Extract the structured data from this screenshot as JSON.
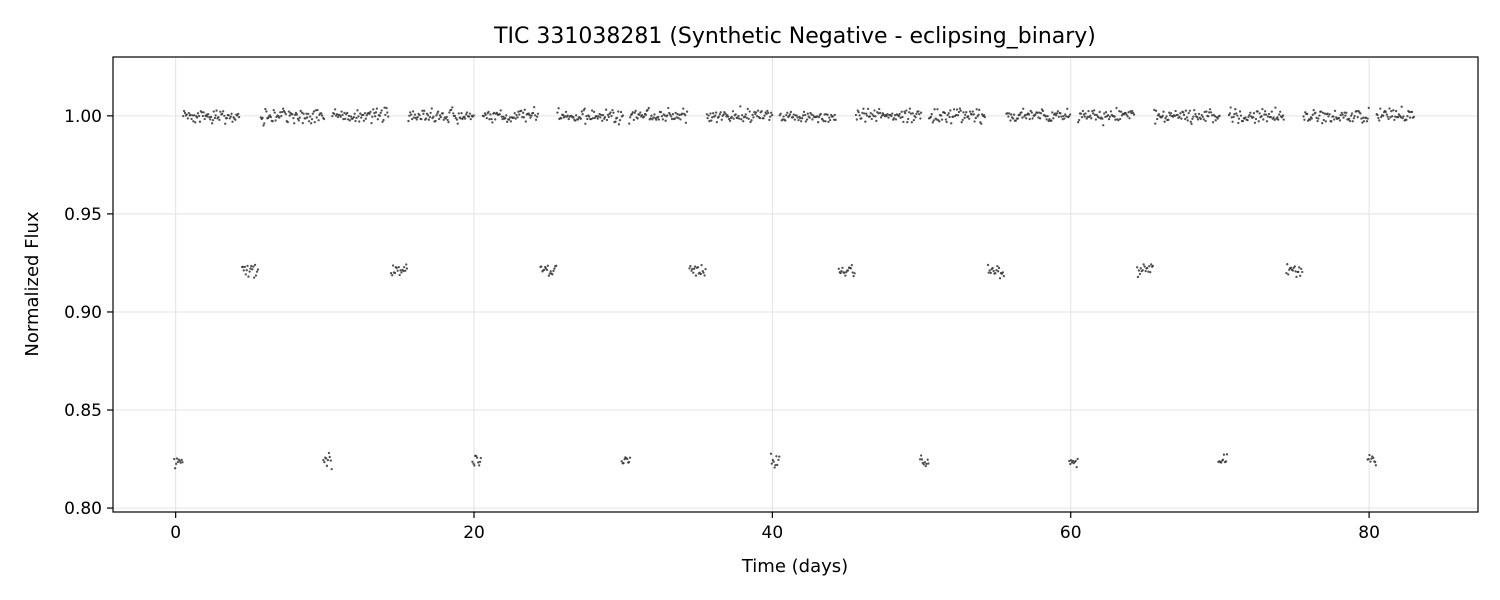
{
  "chart_data": {
    "type": "scatter",
    "title": "TIC 331038281 (Synthetic Negative - eclipsing_binary)",
    "xlabel": "Time (days)",
    "ylabel": "Normalized Flux",
    "xlim": [
      -4.2,
      87.3
    ],
    "ylim": [
      0.798,
      1.03
    ],
    "xticks": [
      0,
      20,
      40,
      60,
      80
    ],
    "yticks": [
      0.8,
      0.85,
      0.9,
      0.95,
      1.0
    ],
    "xtick_labels": [
      "0",
      "20",
      "40",
      "60",
      "80"
    ],
    "ytick_labels": [
      "0.80",
      "0.85",
      "0.90",
      "0.95",
      "1.00"
    ],
    "grid": true,
    "marker_color": "#333333",
    "baseline": {
      "flux": 1.0,
      "scatter": 0.0025,
      "segments": [
        [
          0.5,
          4.3
        ],
        [
          5.7,
          10.0
        ],
        [
          10.5,
          14.3
        ],
        [
          15.6,
          20.0
        ],
        [
          20.6,
          24.3
        ],
        [
          25.6,
          30.0
        ],
        [
          30.4,
          34.3
        ],
        [
          35.6,
          40.0
        ],
        [
          40.5,
          44.3
        ],
        [
          45.6,
          50.0
        ],
        [
          50.5,
          54.3
        ],
        [
          55.7,
          60.0
        ],
        [
          60.5,
          64.3
        ],
        [
          65.6,
          70.0
        ],
        [
          70.6,
          74.3
        ],
        [
          75.6,
          80.0
        ],
        [
          80.5,
          83.0
        ]
      ]
    },
    "secondary_eclipses": {
      "flux": 0.921,
      "scatter": 0.0025,
      "centers": [
        5.0,
        15.0,
        25.0,
        35.0,
        45.0,
        55.0,
        65.0,
        75.0
      ]
    },
    "primary_eclipses": {
      "flux": 0.824,
      "scatter": 0.0025,
      "centers": [
        0.2,
        10.2,
        20.2,
        30.2,
        40.2,
        50.2,
        60.2,
        70.2,
        80.2
      ]
    }
  }
}
